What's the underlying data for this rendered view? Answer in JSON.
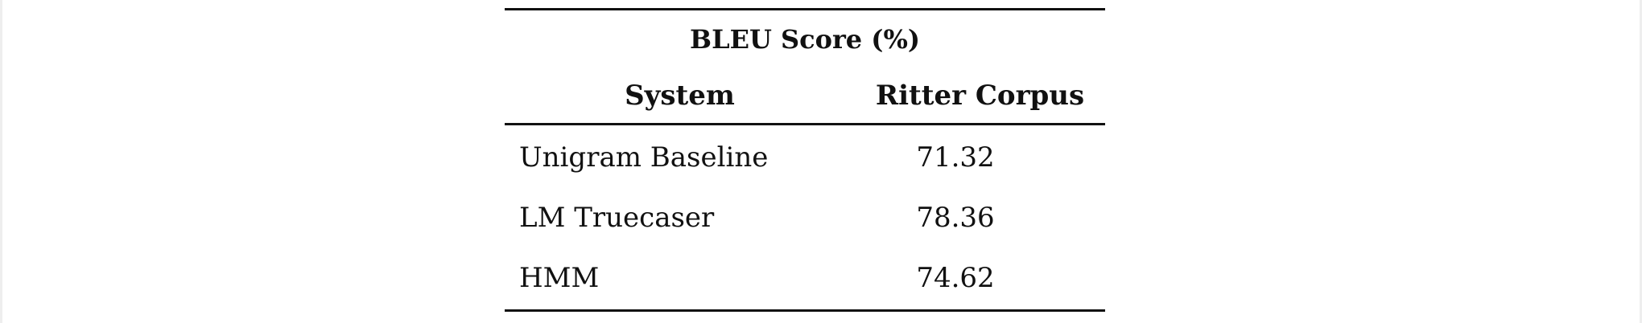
{
  "table": {
    "title": "BLEU Score (%)",
    "columns": [
      "System",
      "Ritter Corpus"
    ],
    "rows": [
      {
        "system": "Unigram Baseline",
        "value": "71.32"
      },
      {
        "system": "LM Truecaser",
        "value": "78.36"
      },
      {
        "system": "HMM",
        "value": "74.62"
      }
    ]
  }
}
